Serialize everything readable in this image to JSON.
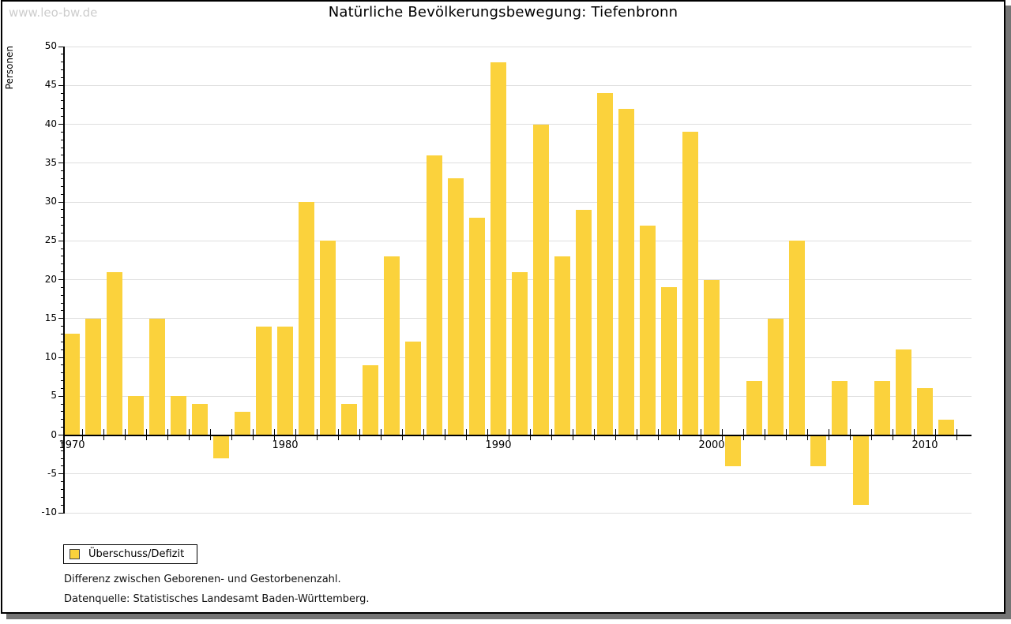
{
  "watermark": "www.leo-bw.de",
  "title": "Natürliche Bevölkerungsbewegung: Tiefenbronn",
  "legend": {
    "label": "Überschuss/Defizit"
  },
  "captions": {
    "line1": "Differenz zwischen Geborenen- und Gestorbenenzahl.",
    "line2": "Datenquelle: Statistisches Landesamt Baden-Württemberg."
  },
  "colors": {
    "bar": "#fbd23c",
    "grid": "#dedede",
    "axis": "#000000",
    "frame_shadow": "#757575",
    "watermark_text": "#cdcdcd"
  },
  "chart_data": {
    "type": "bar",
    "title": "Natürliche Bevölkerungsbewegung: Tiefenbronn",
    "xlabel": "",
    "ylabel": "Personen",
    "series_name": "Überschuss/Defizit",
    "categories": [
      1970,
      1971,
      1972,
      1973,
      1974,
      1975,
      1976,
      1977,
      1978,
      1979,
      1980,
      1981,
      1982,
      1983,
      1984,
      1985,
      1986,
      1987,
      1988,
      1989,
      1990,
      1991,
      1992,
      1993,
      1994,
      1995,
      1996,
      1997,
      1998,
      1999,
      2000,
      2001,
      2002,
      2003,
      2004,
      2005,
      2006,
      2007,
      2008,
      2009,
      2010,
      2011
    ],
    "values": [
      13,
      15,
      21,
      5,
      15,
      5,
      4,
      -3,
      3,
      14,
      14,
      30,
      25,
      4,
      9,
      23,
      12,
      36,
      33,
      28,
      48,
      21,
      40,
      23,
      29,
      44,
      42,
      27,
      19,
      39,
      20,
      -4,
      7,
      15,
      25,
      -4,
      7,
      -9,
      7,
      11,
      6,
      2
    ],
    "ylim": [
      -10,
      50
    ],
    "ytick_major_step": 5,
    "ytick_minor_step": 1,
    "xtick_labels": [
      "1970",
      "1980",
      "1990",
      "2000",
      "2010"
    ],
    "grid": true,
    "legend_position": "bottom-left"
  }
}
